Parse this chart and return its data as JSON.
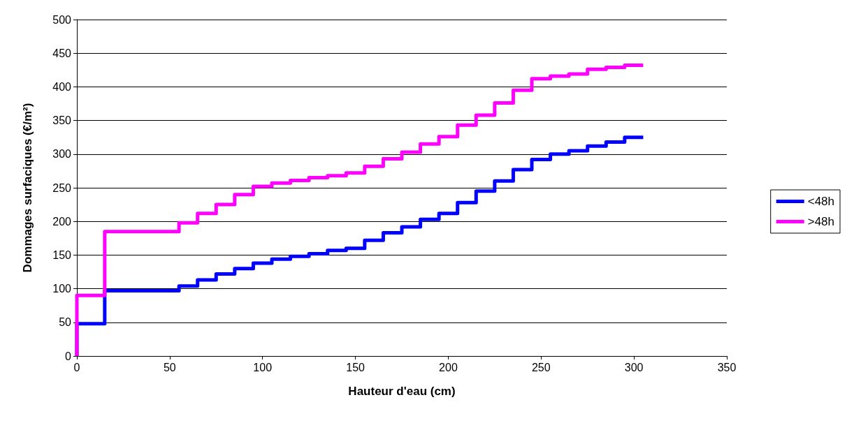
{
  "chart_data": {
    "type": "step",
    "xlabel": "Hauteur d'eau (cm)",
    "ylabel": "Dommages surfaciques (€/m²)",
    "x": [
      0,
      0,
      15,
      55,
      65,
      75,
      85,
      95,
      105,
      115,
      125,
      135,
      145,
      155,
      165,
      175,
      185,
      195,
      205,
      215,
      225,
      235,
      245,
      255,
      265,
      275,
      285,
      295,
      305
    ],
    "series": [
      {
        "name": "<48h",
        "color": "#0000ff",
        "values": [
          0,
          48,
          97,
          104,
          113,
          122,
          130,
          138,
          144,
          148,
          152,
          157,
          160,
          172,
          183,
          192,
          203,
          212,
          228,
          245,
          260,
          277,
          292,
          300,
          305,
          312,
          318,
          325,
          325
        ]
      },
      {
        "name": ">48h",
        "color": "#ff00ff",
        "values": [
          0,
          90,
          185,
          198,
          212,
          225,
          240,
          252,
          257,
          261,
          265,
          268,
          272,
          282,
          293,
          303,
          315,
          326,
          343,
          358,
          376,
          395,
          412,
          416,
          419,
          426,
          429,
          432,
          432
        ]
      }
    ],
    "xlim": [
      0,
      350
    ],
    "xticks": [
      0,
      50,
      100,
      150,
      200,
      250,
      300,
      350
    ],
    "ylim": [
      0,
      500
    ],
    "yticks": [
      0,
      50,
      100,
      150,
      200,
      250,
      300,
      350,
      400,
      450,
      500
    ],
    "grid": "y",
    "legend": "right",
    "marker": "none",
    "line_style": "solid"
  }
}
